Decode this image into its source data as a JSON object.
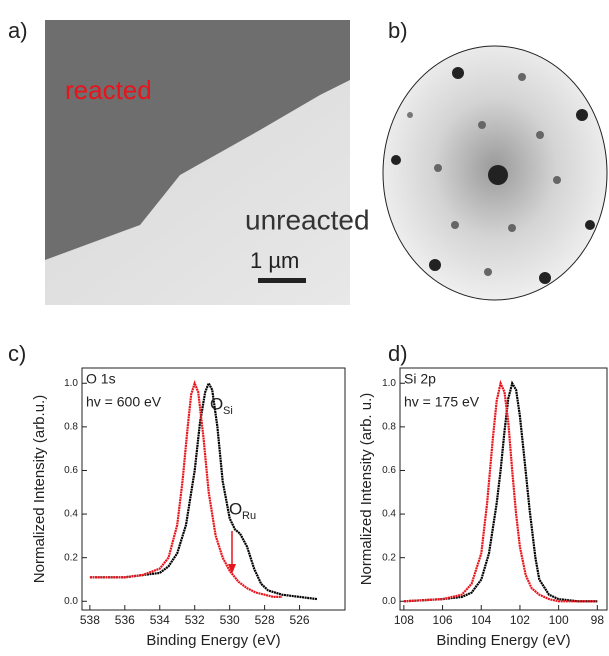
{
  "panel_labels": [
    "a)",
    "b)",
    "c)",
    "d)"
  ],
  "image_a": {
    "reacted_label": "reacted",
    "unreacted_label": "unreacted",
    "scale_bar": "1 µm"
  },
  "chart_data": [
    {
      "type": "line",
      "x_label": "Binding Energy (eV)",
      "y_label": "Normalized Intensity (arb.u.)",
      "annotations": {
        "line1": "O 1s",
        "line2": "hv = 600 eV",
        "peak1_main": "O",
        "peak1_sub": "Si",
        "peak2_main": "O",
        "peak2_sub": "Ru"
      },
      "xlim": [
        538.45,
        523.4
      ],
      "ylim": [
        -0.04,
        1.07
      ],
      "xticks": [
        538,
        536,
        534,
        532,
        530,
        528,
        526
      ],
      "yticks": [
        {
          "value": 0,
          "label": "0.0"
        },
        0.2,
        0.4,
        0.6,
        0.8,
        {
          "value": 1,
          "label": "1.0"
        }
      ],
      "series": [
        {
          "color": "#000000",
          "x": [
            538,
            537,
            536,
            535,
            534,
            533.5,
            533,
            532.5,
            532,
            531.7,
            531.4,
            531.2,
            531,
            530.7,
            530.4,
            530,
            529.7,
            529.4,
            529,
            528.6,
            528.2,
            527.8,
            527,
            526,
            525
          ],
          "values": [
            0.11,
            0.11,
            0.11,
            0.12,
            0.13,
            0.16,
            0.22,
            0.35,
            0.6,
            0.82,
            0.96,
            1.0,
            0.97,
            0.8,
            0.55,
            0.38,
            0.33,
            0.31,
            0.25,
            0.15,
            0.08,
            0.05,
            0.03,
            0.02,
            0.01
          ]
        },
        {
          "color": "#e8141b",
          "x": [
            538,
            537,
            536,
            535,
            534,
            533.5,
            533,
            532.7,
            532.4,
            532.2,
            532,
            531.8,
            531.5,
            531.2,
            530.8,
            530.4,
            530,
            529.5,
            529,
            528.5,
            528,
            527.5,
            527
          ],
          "values": [
            0.11,
            0.11,
            0.11,
            0.12,
            0.15,
            0.2,
            0.35,
            0.55,
            0.8,
            0.95,
            1.0,
            0.96,
            0.75,
            0.5,
            0.3,
            0.2,
            0.14,
            0.09,
            0.06,
            0.04,
            0.03,
            0.02,
            0.02
          ]
        }
      ]
    },
    {
      "type": "line",
      "x_label": "Binding Energy (eV)",
      "y_label": "Normalized Intensity (arb. u.)",
      "annotations": {
        "line1": "Si 2p",
        "line2": "hv = 175 eV"
      },
      "xlim": [
        108.2,
        97.5
      ],
      "ylim": [
        -0.04,
        1.07
      ],
      "xticks": [
        108,
        106,
        104,
        102,
        100,
        98
      ],
      "yticks": [
        {
          "value": 0,
          "label": "0.0"
        },
        0.2,
        0.4,
        0.6,
        0.8,
        {
          "value": 1,
          "label": "1.0"
        }
      ],
      "series": [
        {
          "color": "#000000",
          "x": [
            108,
            106,
            105,
            104.5,
            104,
            103.6,
            103.2,
            103,
            102.8,
            102.6,
            102.4,
            102.2,
            102,
            101.8,
            101.5,
            101.2,
            101,
            100.5,
            100,
            99,
            98
          ],
          "values": [
            0,
            0.01,
            0.02,
            0.04,
            0.1,
            0.22,
            0.45,
            0.6,
            0.78,
            0.93,
            1.0,
            0.97,
            0.85,
            0.68,
            0.42,
            0.2,
            0.1,
            0.03,
            0.01,
            0,
            0
          ]
        },
        {
          "color": "#e8141b",
          "x": [
            108,
            106,
            105,
            104.5,
            104,
            103.7,
            103.4,
            103.2,
            103,
            102.8,
            102.6,
            102.4,
            102.2,
            102,
            101.7,
            101.4,
            101,
            100.5,
            100,
            99,
            98
          ],
          "values": [
            0,
            0.01,
            0.03,
            0.08,
            0.22,
            0.45,
            0.75,
            0.92,
            1.0,
            0.96,
            0.82,
            0.6,
            0.4,
            0.25,
            0.12,
            0.06,
            0.03,
            0.01,
            0,
            0,
            0
          ]
        }
      ]
    }
  ]
}
